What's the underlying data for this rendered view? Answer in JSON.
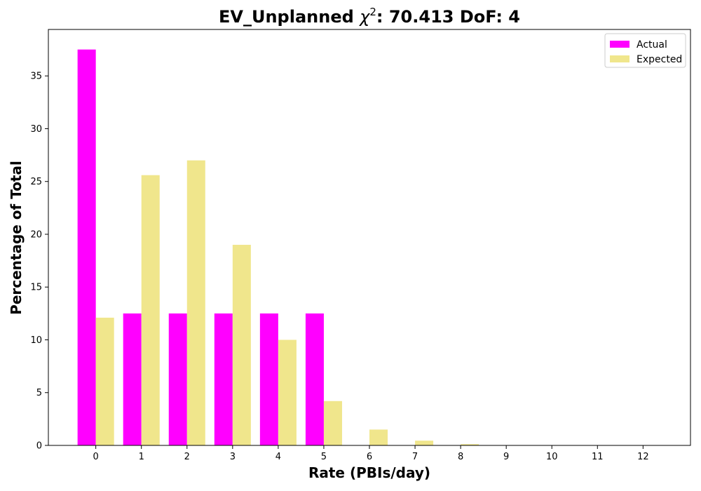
{
  "chart_data": {
    "type": "bar",
    "title_prefix": "EV_Unplanned ",
    "title_chi": "χ",
    "title_sup": "2",
    "title_suffix": ": 70.413 DoF: 4",
    "xlabel": "Rate (PBIs/day)",
    "ylabel": "Percentage of Total",
    "categories": [
      "0",
      "1",
      "2",
      "3",
      "4",
      "5",
      "6",
      "7",
      "8",
      "9",
      "10",
      "11",
      "12"
    ],
    "series": [
      {
        "name": "Actual",
        "color": "#ff00ff",
        "values": [
          37.5,
          12.5,
          12.5,
          12.5,
          12.5,
          12.5,
          0,
          0,
          0,
          0,
          0,
          0,
          0
        ]
      },
      {
        "name": "Expected",
        "color": "#f0e68c",
        "values": [
          12.1,
          25.6,
          27.0,
          19.0,
          10.0,
          4.2,
          1.5,
          0.45,
          0.12,
          0.03,
          0,
          0,
          0
        ]
      }
    ],
    "yticks": [
      0,
      5,
      10,
      15,
      20,
      25,
      30,
      35
    ],
    "ylim": [
      0,
      39.4
    ],
    "xlim": [
      -1.04,
      13.04
    ],
    "legend_position": "top-right",
    "grid": false
  }
}
